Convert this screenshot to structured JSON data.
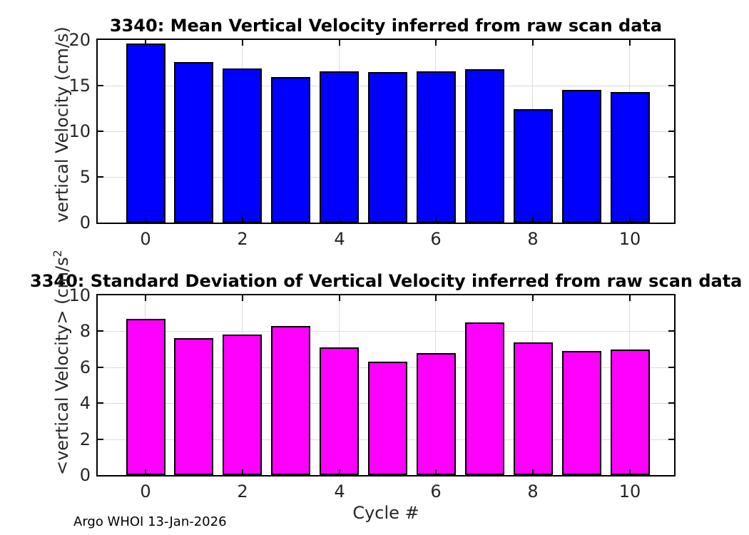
{
  "figure": {
    "footer": "Argo WHOI 13-Jan-2026"
  },
  "colors": {
    "mean_bar_fill": "#0000ff",
    "std_bar_fill": "#ff00ff",
    "bar_edge": "#000000",
    "grid": "#dbdbdb",
    "axis": "#000000",
    "tick_text": "#262626"
  },
  "chart_data": [
    {
      "type": "bar",
      "title": "3340: Mean Vertical Velocity inferred from raw scan data",
      "ylabel": "vertical Velocity (cm/s)",
      "ylabel_sup": "",
      "xlabel": "",
      "categories": [
        0,
        1,
        2,
        3,
        4,
        5,
        6,
        7,
        8,
        9,
        10
      ],
      "values": [
        19.6,
        17.6,
        16.9,
        15.9,
        16.6,
        16.5,
        16.6,
        16.8,
        12.4,
        14.5,
        14.3
      ],
      "ylim": [
        0,
        20
      ],
      "yticks": [
        0,
        5,
        10,
        15,
        20
      ],
      "xticks": [
        0,
        2,
        4,
        6,
        8,
        10
      ],
      "grid": true,
      "legend": "none",
      "bar_color": "#0000ff"
    },
    {
      "type": "bar",
      "title": "3340: Standard Deviation of Vertical Velocity inferred from raw scan data",
      "ylabel": "<vertical Velocity> (cm/s",
      "ylabel_sup": "2",
      "xlabel": "Cycle #",
      "categories": [
        0,
        1,
        2,
        3,
        4,
        5,
        6,
        7,
        8,
        9,
        10
      ],
      "values": [
        8.7,
        7.6,
        7.8,
        8.3,
        7.1,
        6.3,
        6.8,
        8.5,
        7.4,
        6.9,
        7.0
      ],
      "ylim": [
        0,
        10
      ],
      "yticks": [
        0,
        2,
        4,
        6,
        8,
        10
      ],
      "xticks": [
        0,
        2,
        4,
        6,
        8,
        10
      ],
      "grid": true,
      "legend": "none",
      "bar_color": "#ff00ff"
    }
  ]
}
